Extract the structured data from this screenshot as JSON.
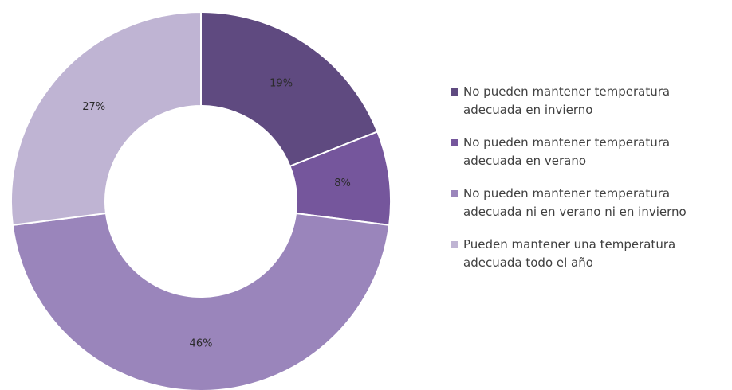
{
  "chart_data": {
    "type": "pie",
    "variant": "donut",
    "categories": [
      [
        "No pueden mantener temperatura",
        "adecuada en invierno"
      ],
      [
        "No pueden mantener temperatura",
        "adecuada en verano"
      ],
      [
        "No pueden mantener temperatura",
        "adecuada ni en verano ni en invierno"
      ],
      [
        "Pueden mantener una temperatura",
        "adecuada todo el año"
      ]
    ],
    "values": [
      19,
      8,
      46,
      27
    ],
    "data_labels": [
      "19%",
      "8%",
      "46%",
      "27%"
    ],
    "colors": [
      "#5f4a80",
      "#75569c",
      "#9a85bb",
      "#bfb4d3"
    ],
    "legend_position": "right",
    "title": "",
    "xlabel": "",
    "ylabel": ""
  }
}
